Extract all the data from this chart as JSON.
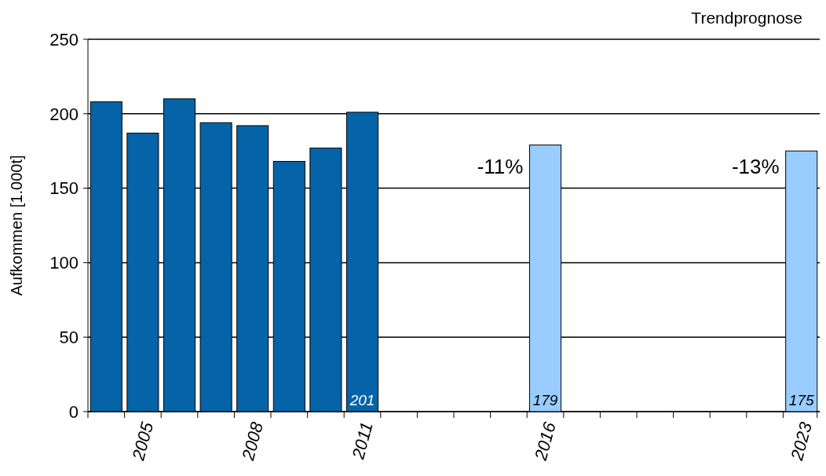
{
  "chart_data": {
    "type": "bar",
    "ylabel": "Aufkommen [1.000t]",
    "categories": [
      null,
      "2005",
      null,
      null,
      "2008",
      null,
      null,
      "2011",
      null,
      null,
      null,
      null,
      "2016",
      null,
      null,
      null,
      null,
      null,
      null,
      "2023"
    ],
    "values": [
      208,
      187,
      210,
      194,
      192,
      168,
      177,
      201,
      null,
      null,
      null,
      null,
      179,
      null,
      null,
      null,
      null,
      null,
      null,
      175
    ],
    "colors": [
      "#0563a8",
      "#0563a8",
      "#0563a8",
      "#0563a8",
      "#0563a8",
      "#0563a8",
      "#0563a8",
      "#0563a8",
      null,
      null,
      null,
      null,
      "#99ccff",
      null,
      null,
      null,
      null,
      null,
      null,
      "#99ccff"
    ],
    "value_labels": [
      null,
      null,
      null,
      null,
      null,
      null,
      null,
      "201",
      null,
      null,
      null,
      null,
      "179",
      null,
      null,
      null,
      null,
      null,
      null,
      "175"
    ],
    "ylim": [
      0,
      250
    ],
    "yticks": [
      0,
      50,
      100,
      150,
      200,
      250
    ],
    "grid": "y",
    "annotations": [
      "Trendprognose",
      {
        "text": "-11%",
        "x": "2016",
        "y": 160
      },
      {
        "text": "-13%",
        "x": "2023",
        "y": 160
      }
    ]
  }
}
